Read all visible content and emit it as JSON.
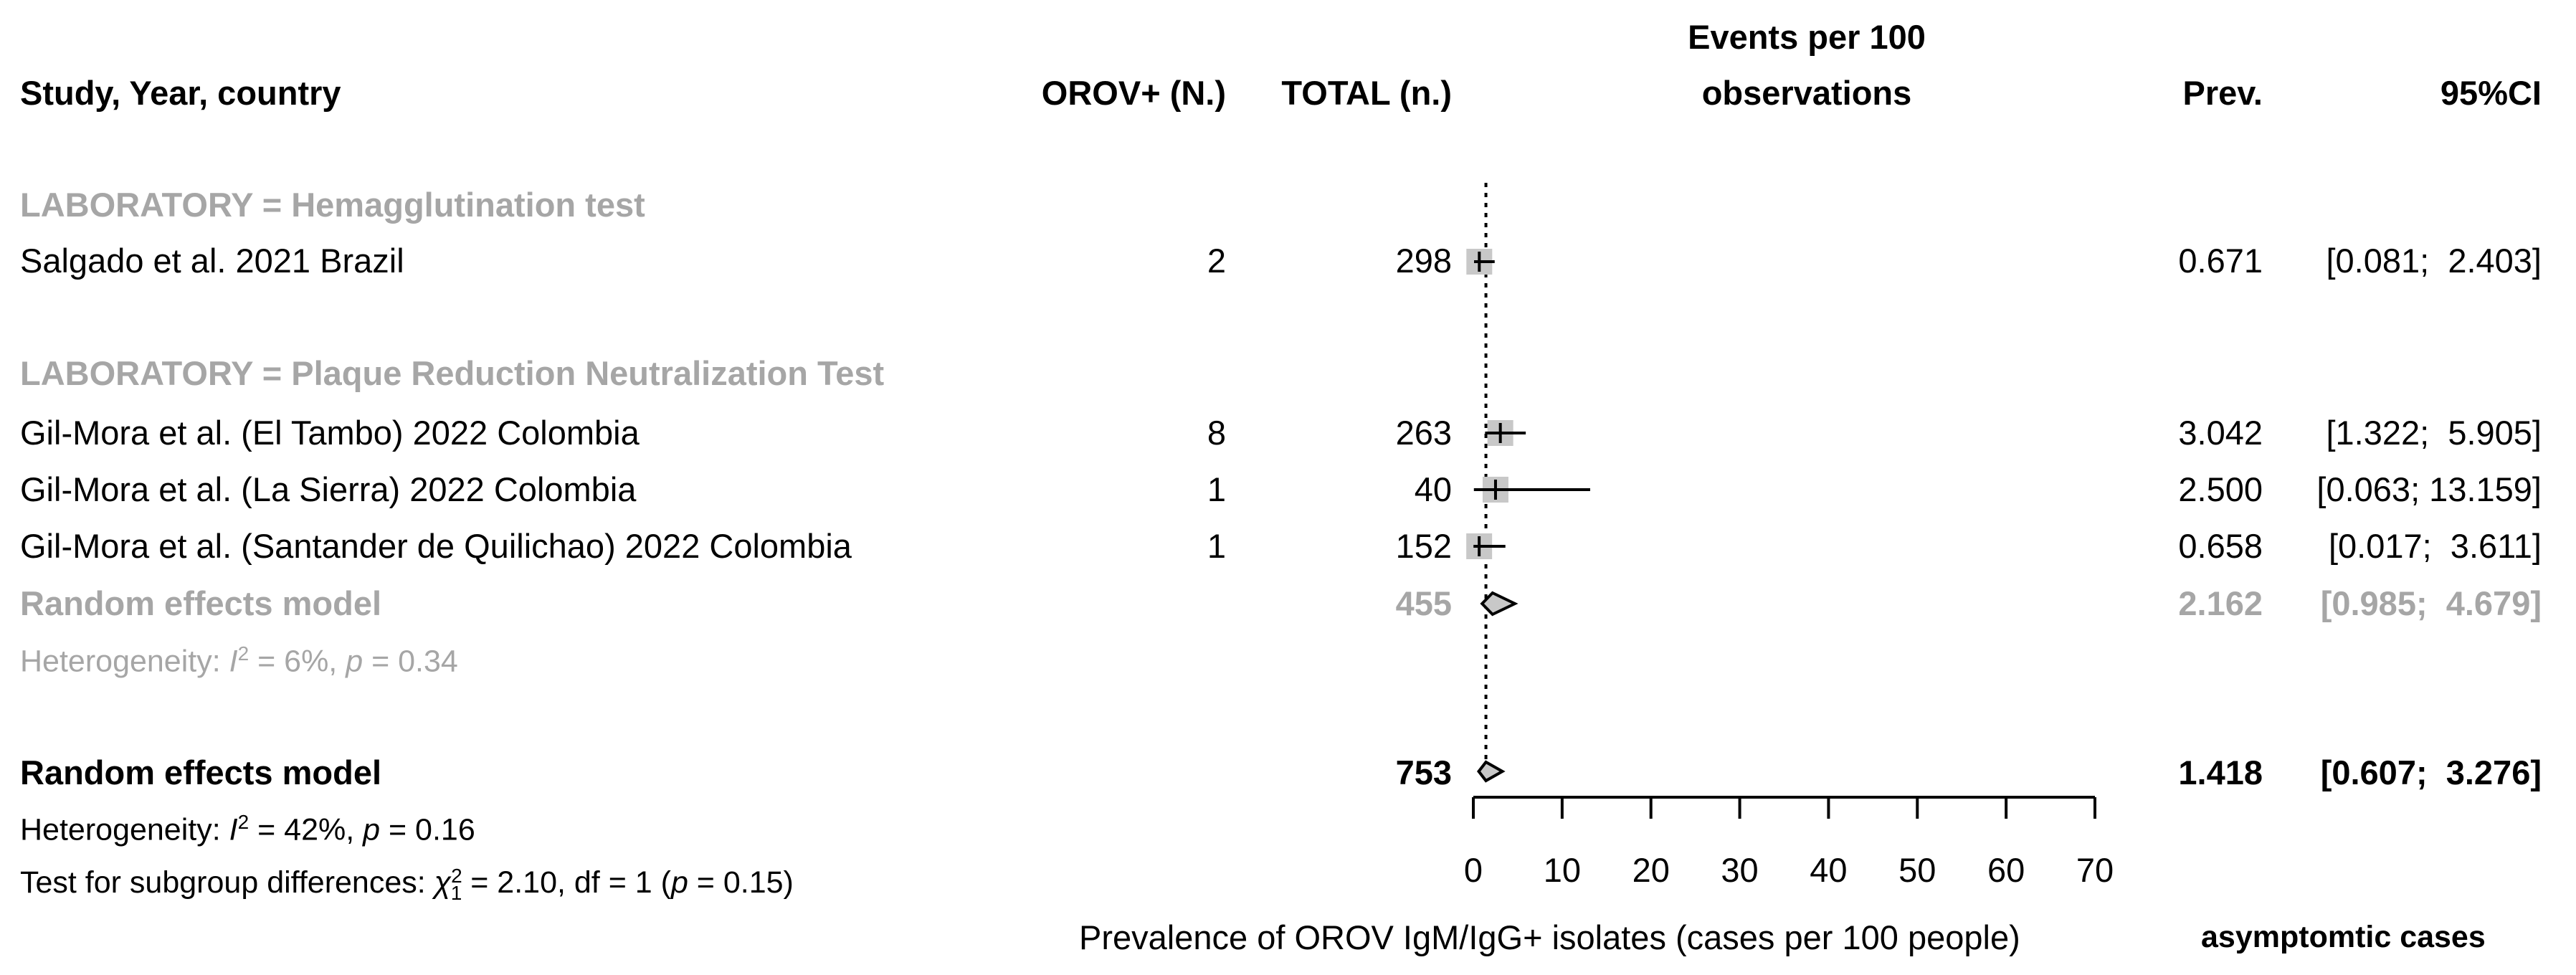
{
  "header": {
    "study": "Study, Year, country",
    "events": "OROV+ (N.)",
    "total": "TOTAL (n.)",
    "plot_title_line1": "Events per 100",
    "plot_title_line2": "observations",
    "prev": "Prev.",
    "ci": "95%CI"
  },
  "groups": [
    {
      "label": "LABORATORY = Hemagglutination test",
      "studies": [
        {
          "name": "Salgado et al. 2021 Brazil",
          "events": "2",
          "total": "298",
          "prev": "0.671",
          "ci": "[0.081;  2.403]",
          "est": 0.671,
          "lo": 0.081,
          "hi": 2.403
        }
      ]
    },
    {
      "label": "LABORATORY = Plaque Reduction Neutralization Test",
      "studies": [
        {
          "name": "Gil-Mora et al. (El Tambo) 2022 Colombia",
          "events": "8",
          "total": "263",
          "prev": "3.042",
          "ci": "[1.322;  5.905]",
          "est": 3.042,
          "lo": 1.322,
          "hi": 5.905
        },
        {
          "name": "Gil-Mora et al. (La Sierra) 2022 Colombia",
          "events": "1",
          "total": "40",
          "prev": "2.500",
          "ci": "[0.063; 13.159]",
          "est": 2.5,
          "lo": 0.063,
          "hi": 13.159
        },
        {
          "name": "Gil-Mora et al. (Santander de Quilichao) 2022 Colombia",
          "events": "1",
          "total": "152",
          "prev": "0.658",
          "ci": "[0.017;  3.611]",
          "est": 0.658,
          "lo": 0.017,
          "hi": 3.611
        }
      ],
      "subtotal": {
        "label": "Random effects model",
        "total": "455",
        "prev": "2.162",
        "ci": "[0.985;  4.679]",
        "est": 2.162,
        "lo": 0.985,
        "hi": 4.679
      },
      "heterogeneity": {
        "prefix": "Heterogeneity: ",
        "I": "I",
        "sup": "2",
        "mid": " = 6%, ",
        "p": "p",
        "rest": " = 0.34"
      }
    }
  ],
  "overall": {
    "label": "Random effects model",
    "total": "753",
    "prev": "1.418",
    "ci": "[0.607;  3.276]",
    "est": 1.418,
    "lo": 0.607,
    "hi": 3.276
  },
  "overall_heterogeneity": {
    "prefix": "Heterogeneity: ",
    "I": "I",
    "sup": "2",
    "mid": " = 42%, ",
    "p": "p",
    "rest": " = 0.16"
  },
  "subgroup_test": {
    "prefix": "Test for subgroup differences: ",
    "chi": "χ",
    "sup": "2",
    "sub": "1",
    "mid": " = 2.10, df = 1 (",
    "p": "p",
    "rest": " = 0.15)"
  },
  "chart_data": {
    "type": "forest",
    "title": "Events per 100 observations",
    "xlabel": "Prevalence of OROV IgM/IgG+ isolates (cases per 100 people)",
    "xlabel_right": "asymptomtic cases",
    "xlim": [
      0,
      70
    ],
    "xticks": [
      0,
      10,
      20,
      30,
      40,
      50,
      60,
      70
    ],
    "reference_line": 1.418,
    "series": [
      {
        "name": "Salgado et al. 2021 Brazil",
        "est": 0.671,
        "lo": 0.081,
        "hi": 2.403,
        "kind": "study"
      },
      {
        "name": "Gil-Mora et al. (El Tambo) 2022 Colombia",
        "est": 3.042,
        "lo": 1.322,
        "hi": 5.905,
        "kind": "study"
      },
      {
        "name": "Gil-Mora et al. (La Sierra) 2022 Colombia",
        "est": 2.5,
        "lo": 0.063,
        "hi": 13.159,
        "kind": "study"
      },
      {
        "name": "Gil-Mora et al. (Santander de Quilichao) 2022 Colombia",
        "est": 0.658,
        "lo": 0.017,
        "hi": 3.611,
        "kind": "study"
      },
      {
        "name": "Random effects model (PRNT subgroup)",
        "est": 2.162,
        "lo": 0.985,
        "hi": 4.679,
        "kind": "subgroup"
      },
      {
        "name": "Random effects model (overall)",
        "est": 1.418,
        "lo": 0.607,
        "hi": 3.276,
        "kind": "overall"
      }
    ]
  }
}
